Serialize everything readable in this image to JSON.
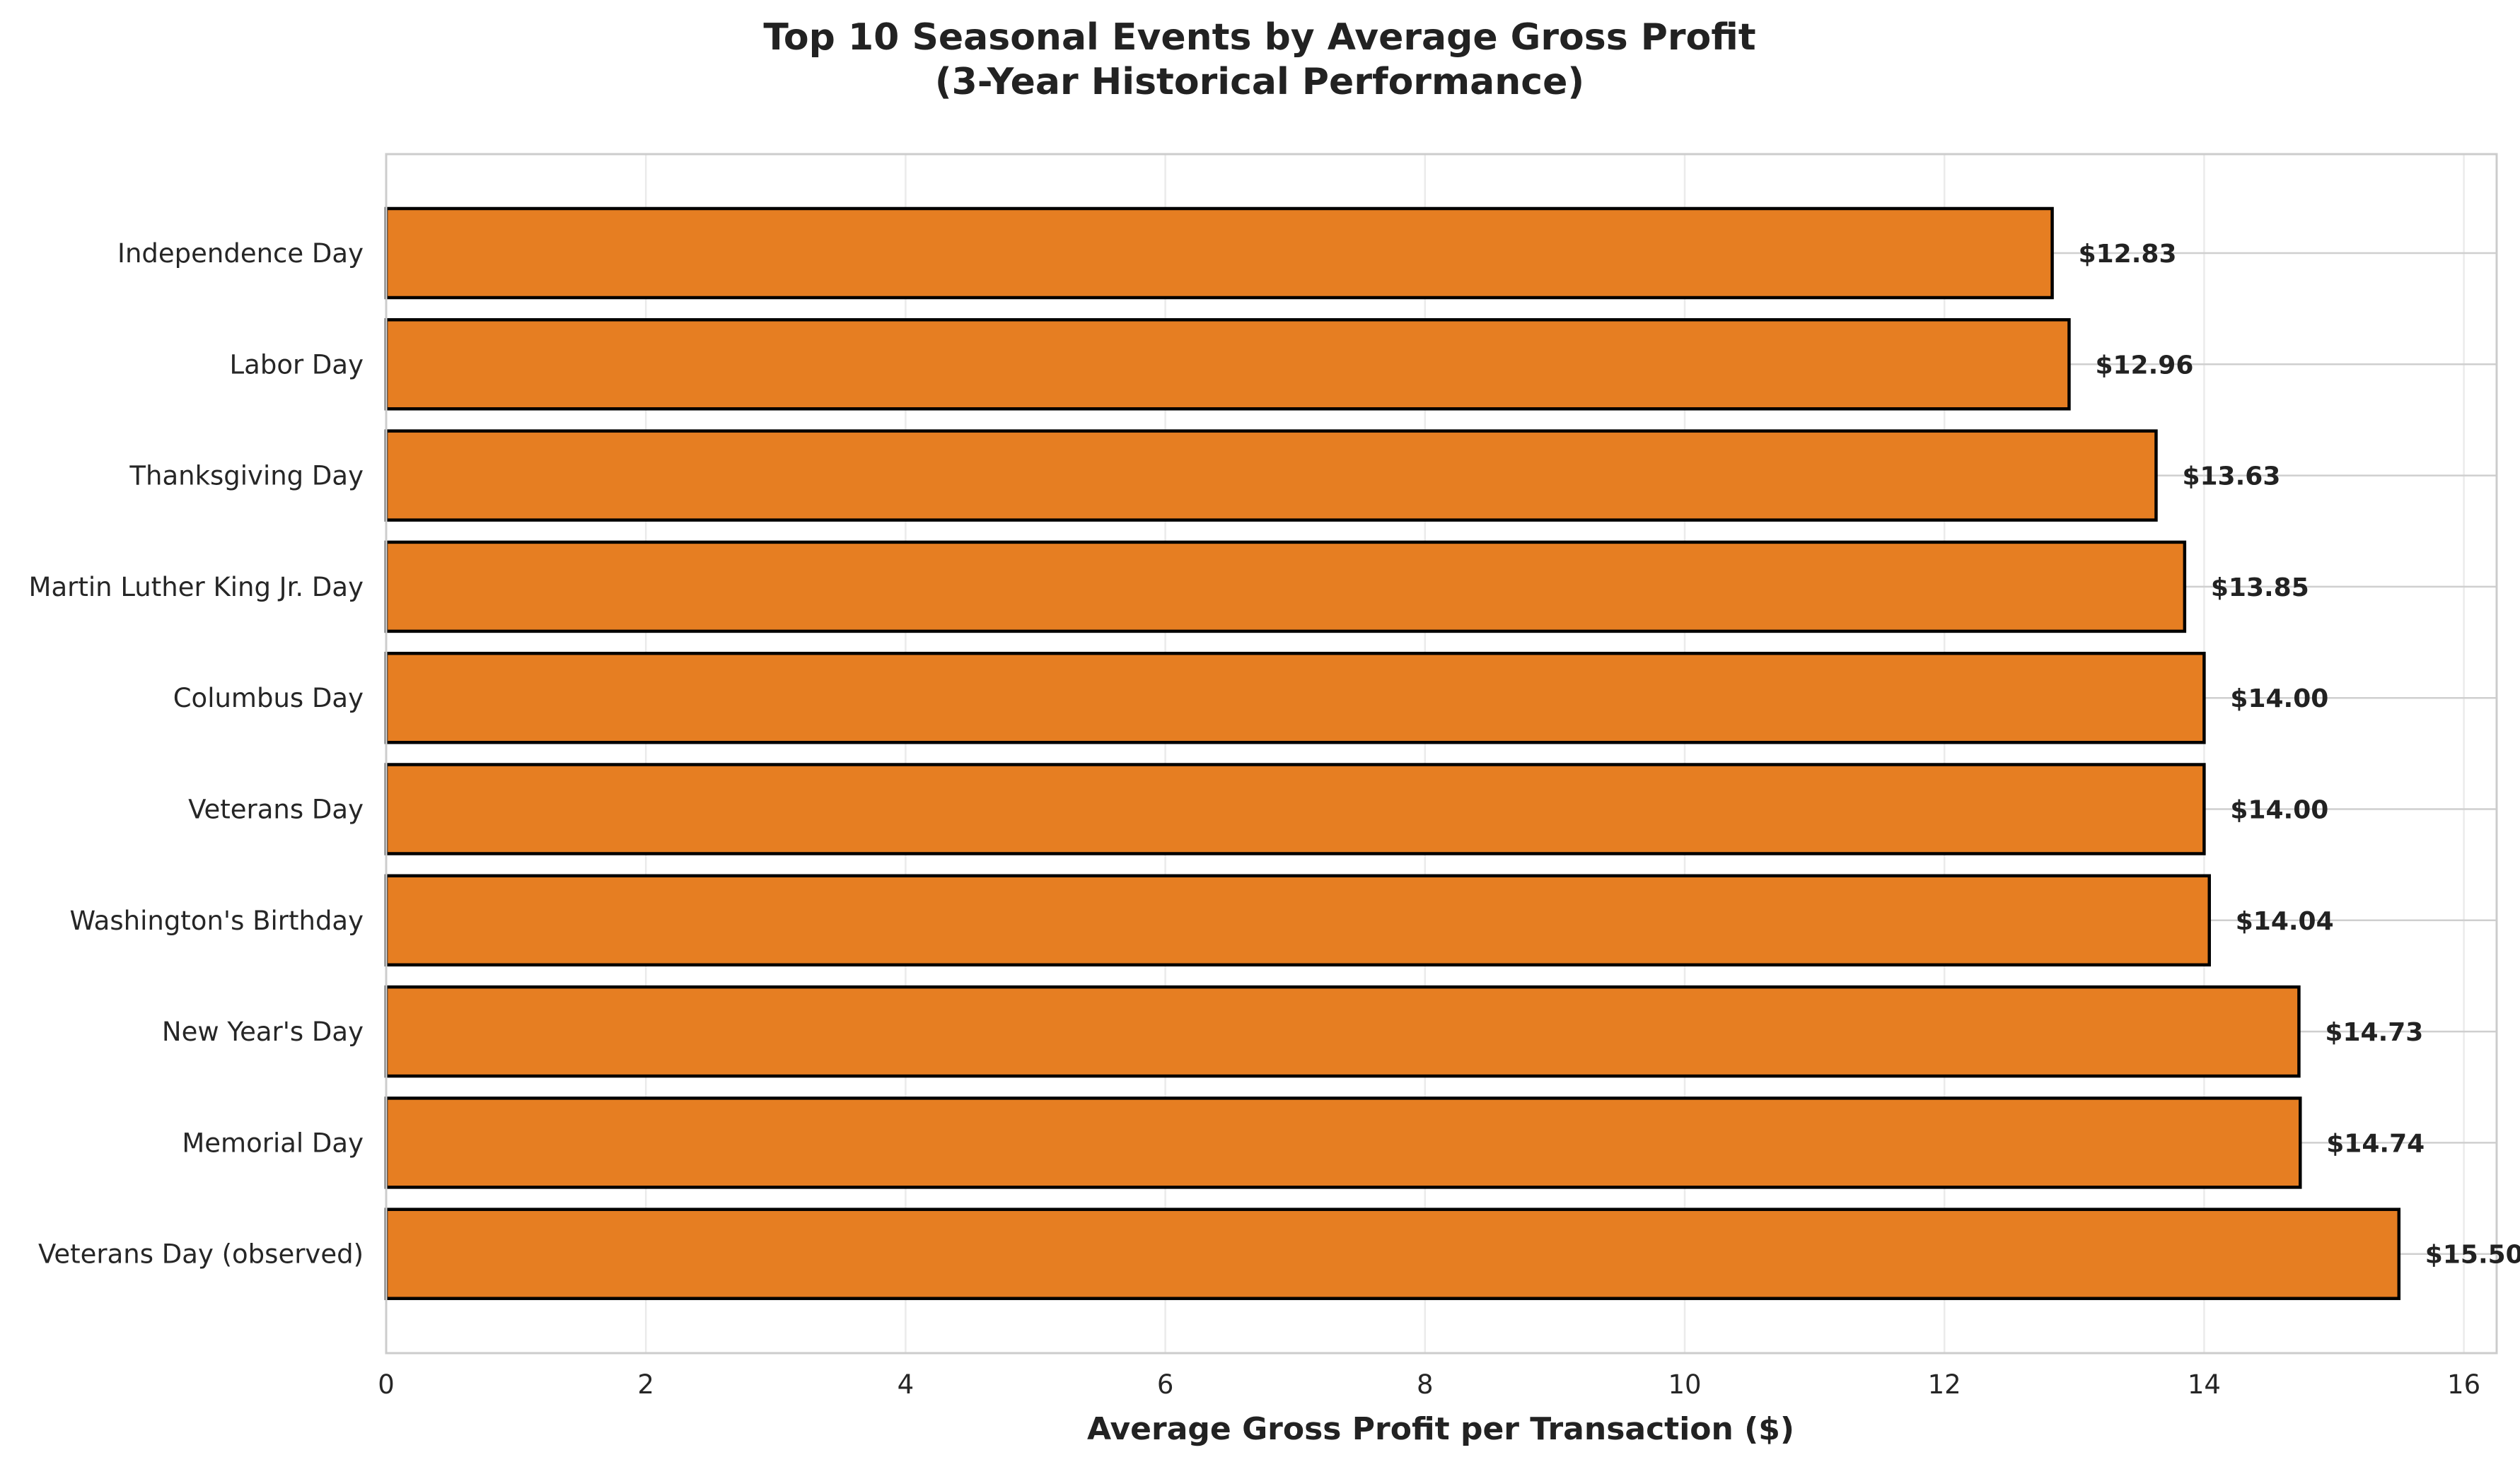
{
  "chart_data": {
    "type": "bar",
    "orientation": "horizontal",
    "title": "Top 10 Seasonal Events by Average Gross Profit",
    "subtitle": "(3-Year Historical Performance)",
    "xlabel": "Average Gross Profit per Transaction ($)",
    "ylabel": "",
    "xlim": [
      0,
      16.3
    ],
    "xticks": [
      "0",
      "2",
      "4",
      "6",
      "8",
      "10",
      "12",
      "14",
      "16"
    ],
    "grid": true,
    "legend": "none",
    "bar_color": "#e67e22",
    "bar_edge_color": "#000000",
    "categories": [
      "Independence Day",
      "Labor Day",
      "Thanksgiving Day",
      "Martin Luther King Jr. Day",
      "Columbus Day",
      "Veterans Day",
      "Washington's Birthday",
      "New Year's Day",
      "Memorial Day",
      "Veterans Day (observed)"
    ],
    "values": [
      12.83,
      12.96,
      13.63,
      13.85,
      14.0,
      14.0,
      14.04,
      14.73,
      14.74,
      15.5
    ],
    "value_labels": [
      "$12.83",
      "$12.96",
      "$13.63",
      "$13.85",
      "$14.00",
      "$14.00",
      "$14.04",
      "$14.73",
      "$14.74",
      "$15.50"
    ]
  }
}
